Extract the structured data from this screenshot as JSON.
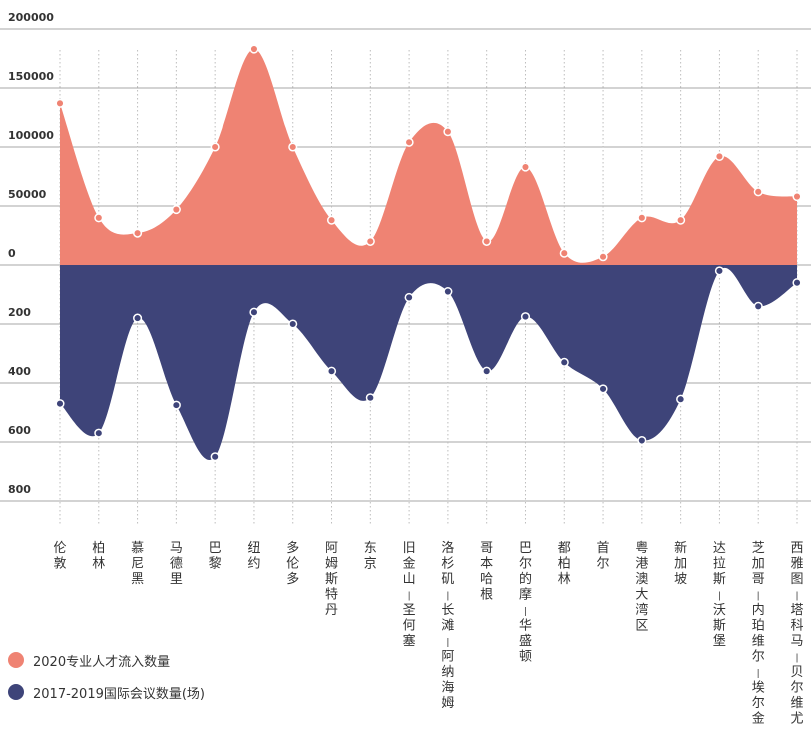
{
  "chart_data": {
    "type": "area",
    "categories": [
      "伦敦",
      "柏林",
      "慕尼黑",
      "马德里",
      "巴黎",
      "纽约",
      "多伦多",
      "阿姆斯特丹",
      "东京",
      "旧金山-圣何塞",
      "洛杉矶-长滩-阿纳海姆",
      "哥本哈根",
      "巴尔的摩-华盛顿",
      "都柏林",
      "首尔",
      "粤港澳大湾区",
      "新加坡",
      "达拉斯-沃斯堡",
      "芝加哥-内珀维尔-埃尔金",
      "西雅图-塔科马-贝尔维尤"
    ],
    "top_axis_ticks": [
      "200000",
      "150000",
      "100000",
      "50000",
      "0"
    ],
    "bottom_axis_ticks": [
      "200",
      "400",
      "600",
      "800"
    ],
    "top_ylim": [
      0,
      200000
    ],
    "bottom_ylim": [
      0,
      800
    ],
    "grid": true,
    "legend_position": "bottom-left",
    "series": [
      {
        "name": "2020专业人才流入数量",
        "color": "#ef8373",
        "values": [
          137000,
          40000,
          27000,
          47000,
          100000,
          183000,
          100000,
          38000,
          20000,
          104000,
          113000,
          20000,
          83000,
          10000,
          7000,
          40000,
          38000,
          92000,
          62000,
          58000
        ]
      },
      {
        "name": "2017-2019国际会议数量(场)",
        "color": "#3e4479",
        "values": [
          470,
          570,
          180,
          475,
          650,
          160,
          200,
          360,
          450,
          110,
          90,
          360,
          175,
          330,
          420,
          595,
          455,
          20,
          140,
          60
        ]
      }
    ]
  }
}
